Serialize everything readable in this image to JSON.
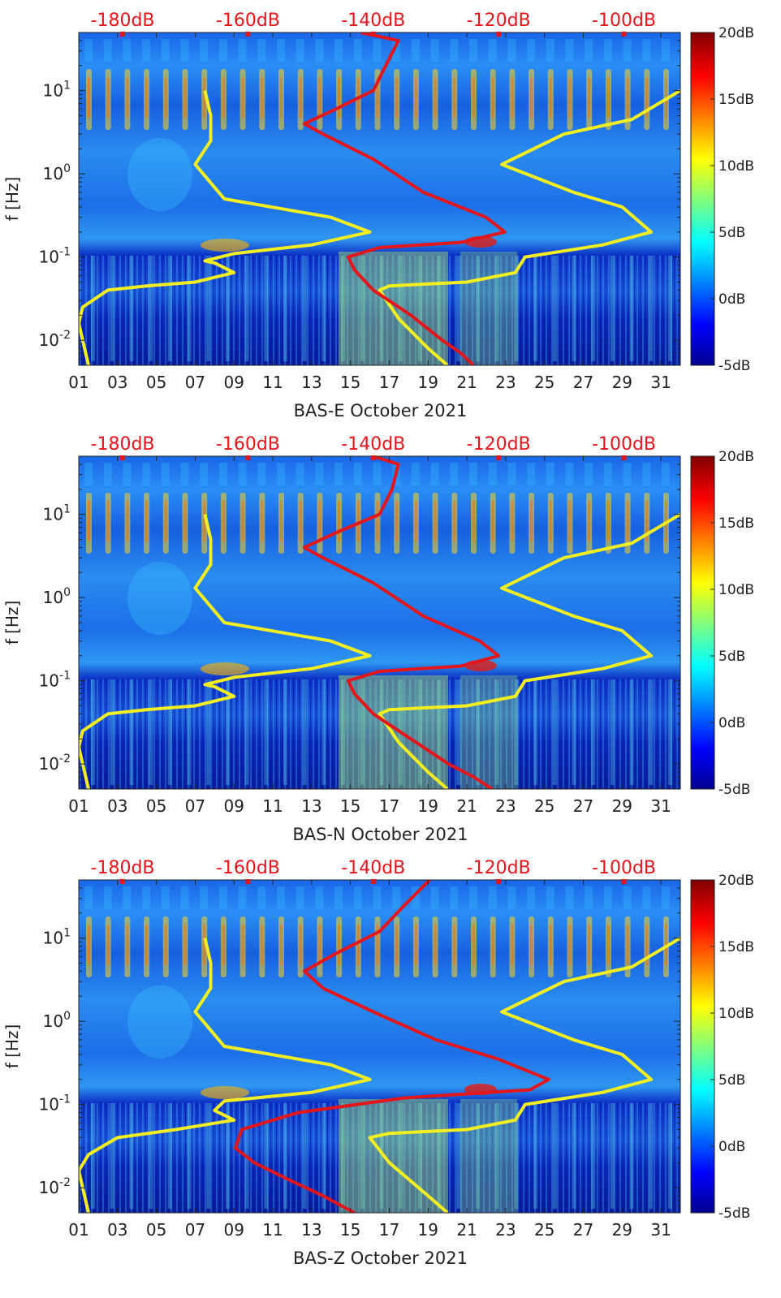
{
  "chart_data": [
    {
      "type": "heatmap",
      "title": "",
      "xlabel": "BAS-E October 2021",
      "ylabel": "f [Hz]",
      "x_tick_labels": [
        "01",
        "03",
        "05",
        "07",
        "09",
        "11",
        "13",
        "15",
        "17",
        "19",
        "21",
        "23",
        "25",
        "27",
        "29",
        "31"
      ],
      "x_tick_values": [
        1,
        3,
        5,
        7,
        9,
        11,
        13,
        15,
        17,
        19,
        21,
        23,
        25,
        27,
        29,
        31
      ],
      "xlim": [
        1,
        32
      ],
      "y_scale": "log",
      "ylim": [
        0.005,
        50
      ],
      "y_ticks": [
        {
          "base": "10",
          "exp": "1",
          "value": 10
        },
        {
          "base": "10",
          "exp": "0",
          "value": 1
        },
        {
          "base": "10",
          "exp": "-1",
          "value": 0.1
        },
        {
          "base": "10",
          "exp": "-2",
          "value": 0.01
        }
      ],
      "top_axis_labels": [
        "-180dB",
        "-160dB",
        "-140dB",
        "-120dB",
        "-100dB"
      ],
      "top_axis_values": [
        -180,
        -160,
        -140,
        -120,
        -100
      ],
      "top_axis_range": [
        -187,
        -91
      ],
      "colorbar": {
        "labels": [
          "20dB",
          "15dB",
          "10dB",
          "5dB",
          "0dB",
          "-5dB"
        ],
        "values": [
          20,
          15,
          10,
          5,
          0,
          -5
        ],
        "range": [
          -5,
          20
        ]
      },
      "series": [
        {
          "name": "yellow-low",
          "color": "#f2ee22",
          "axis": "date",
          "points": [
            [
              1.5,
              0.005
            ],
            [
              1.0,
              0.016
            ],
            [
              1.2,
              0.025
            ],
            [
              2.5,
              0.04
            ],
            [
              4.5,
              0.045
            ],
            [
              7.0,
              0.05
            ],
            [
              9.0,
              0.065
            ],
            [
              8.0,
              0.085
            ],
            [
              7.5,
              0.09
            ],
            [
              9.0,
              0.11
            ],
            [
              13.0,
              0.14
            ],
            [
              16.0,
              0.2
            ],
            [
              14.0,
              0.3
            ],
            [
              8.5,
              0.5
            ],
            [
              7.0,
              1.3
            ],
            [
              7.8,
              2.5
            ],
            [
              7.8,
              5.0
            ],
            [
              7.5,
              10.0
            ]
          ]
        },
        {
          "name": "yellow-high",
          "color": "#f2ee22",
          "axis": "date",
          "points": [
            [
              20.0,
              0.005
            ],
            [
              19.0,
              0.008
            ],
            [
              17.5,
              0.018
            ],
            [
              16.5,
              0.04
            ],
            [
              17.0,
              0.045
            ],
            [
              21.0,
              0.05
            ],
            [
              23.5,
              0.065
            ],
            [
              24.0,
              0.1
            ],
            [
              28.0,
              0.14
            ],
            [
              30.5,
              0.2
            ],
            [
              29.0,
              0.4
            ],
            [
              26.5,
              0.6
            ],
            [
              22.8,
              1.3
            ],
            [
              26.0,
              3.0
            ],
            [
              29.5,
              4.5
            ],
            [
              32.0,
              10.0
            ]
          ]
        },
        {
          "name": "red-spectrum",
          "color": "#e3161b",
          "axis": "dB",
          "points": [
            [
              -124,
              0.005
            ],
            [
              -126,
              0.007
            ],
            [
              -129,
              0.01
            ],
            [
              -134,
              0.02
            ],
            [
              -140,
              0.04
            ],
            [
              -143,
              0.07
            ],
            [
              -144,
              0.1
            ],
            [
              -139,
              0.13
            ],
            [
              -126,
              0.15
            ],
            [
              -119,
              0.2
            ],
            [
              -122,
              0.3
            ],
            [
              -132,
              0.6
            ],
            [
              -140,
              1.5
            ],
            [
              -148,
              3.0
            ],
            [
              -151,
              4.0
            ],
            [
              -146,
              6.0
            ],
            [
              -140,
              10.0
            ],
            [
              -138,
              20.0
            ],
            [
              -136,
              40.0
            ],
            [
              -142,
              50.0
            ]
          ]
        }
      ]
    },
    {
      "type": "heatmap",
      "title": "",
      "xlabel": "BAS-N October 2021",
      "ylabel": "f [Hz]",
      "x_tick_labels": [
        "01",
        "03",
        "05",
        "07",
        "09",
        "11",
        "13",
        "15",
        "17",
        "19",
        "21",
        "23",
        "25",
        "27",
        "29",
        "31"
      ],
      "x_tick_values": [
        1,
        3,
        5,
        7,
        9,
        11,
        13,
        15,
        17,
        19,
        21,
        23,
        25,
        27,
        29,
        31
      ],
      "xlim": [
        1,
        32
      ],
      "y_scale": "log",
      "ylim": [
        0.005,
        50
      ],
      "y_ticks": [
        {
          "base": "10",
          "exp": "1",
          "value": 10
        },
        {
          "base": "10",
          "exp": "0",
          "value": 1
        },
        {
          "base": "10",
          "exp": "-1",
          "value": 0.1
        },
        {
          "base": "10",
          "exp": "-2",
          "value": 0.01
        }
      ],
      "top_axis_labels": [
        "-180dB",
        "-160dB",
        "-140dB",
        "-120dB",
        "-100dB"
      ],
      "top_axis_values": [
        -180,
        -160,
        -140,
        -120,
        -100
      ],
      "top_axis_range": [
        -187,
        -91
      ],
      "colorbar": {
        "labels": [
          "20dB",
          "15dB",
          "10dB",
          "5dB",
          "0dB",
          "-5dB"
        ],
        "values": [
          20,
          15,
          10,
          5,
          0,
          -5
        ],
        "range": [
          -5,
          20
        ]
      },
      "series": [
        {
          "name": "yellow-low",
          "color": "#f2ee22",
          "axis": "date",
          "points": [
            [
              1.5,
              0.005
            ],
            [
              1.0,
              0.016
            ],
            [
              1.2,
              0.025
            ],
            [
              2.5,
              0.04
            ],
            [
              4.5,
              0.045
            ],
            [
              7.0,
              0.05
            ],
            [
              9.0,
              0.065
            ],
            [
              8.0,
              0.085
            ],
            [
              7.5,
              0.09
            ],
            [
              9.0,
              0.11
            ],
            [
              13.0,
              0.14
            ],
            [
              16.0,
              0.2
            ],
            [
              14.0,
              0.3
            ],
            [
              8.5,
              0.5
            ],
            [
              7.0,
              1.3
            ],
            [
              7.8,
              2.5
            ],
            [
              7.8,
              5.0
            ],
            [
              7.5,
              10.0
            ]
          ]
        },
        {
          "name": "yellow-high",
          "color": "#f2ee22",
          "axis": "date",
          "points": [
            [
              20.0,
              0.005
            ],
            [
              19.0,
              0.008
            ],
            [
              17.5,
              0.018
            ],
            [
              16.5,
              0.04
            ],
            [
              17.0,
              0.045
            ],
            [
              21.0,
              0.05
            ],
            [
              23.5,
              0.065
            ],
            [
              24.0,
              0.1
            ],
            [
              28.0,
              0.14
            ],
            [
              30.5,
              0.2
            ],
            [
              29.0,
              0.4
            ],
            [
              26.5,
              0.6
            ],
            [
              22.8,
              1.3
            ],
            [
              26.0,
              3.0
            ],
            [
              29.5,
              4.5
            ],
            [
              32.0,
              10.0
            ]
          ]
        },
        {
          "name": "red-spectrum",
          "color": "#e3161b",
          "axis": "dB",
          "points": [
            [
              -121,
              0.005
            ],
            [
              -124,
              0.007
            ],
            [
              -128,
              0.01
            ],
            [
              -134,
              0.02
            ],
            [
              -140,
              0.04
            ],
            [
              -143,
              0.07
            ],
            [
              -144,
              0.1
            ],
            [
              -139,
              0.13
            ],
            [
              -126,
              0.15
            ],
            [
              -120,
              0.2
            ],
            [
              -123,
              0.3
            ],
            [
              -132,
              0.6
            ],
            [
              -140,
              1.5
            ],
            [
              -148,
              3.0
            ],
            [
              -151,
              4.0
            ],
            [
              -146,
              6.0
            ],
            [
              -139,
              10.0
            ],
            [
              -137,
              20.0
            ],
            [
              -136,
              40.0
            ],
            [
              -140,
              50.0
            ]
          ]
        }
      ]
    },
    {
      "type": "heatmap",
      "title": "",
      "xlabel": "BAS-Z October 2021",
      "ylabel": "f [Hz]",
      "x_tick_labels": [
        "01",
        "03",
        "05",
        "07",
        "09",
        "11",
        "13",
        "15",
        "17",
        "19",
        "21",
        "23",
        "25",
        "27",
        "29",
        "31"
      ],
      "x_tick_values": [
        1,
        3,
        5,
        7,
        9,
        11,
        13,
        15,
        17,
        19,
        21,
        23,
        25,
        27,
        29,
        31
      ],
      "xlim": [
        1,
        32
      ],
      "y_scale": "log",
      "ylim": [
        0.005,
        50
      ],
      "y_ticks": [
        {
          "base": "10",
          "exp": "1",
          "value": 10
        },
        {
          "base": "10",
          "exp": "0",
          "value": 1
        },
        {
          "base": "10",
          "exp": "-1",
          "value": 0.1
        },
        {
          "base": "10",
          "exp": "-2",
          "value": 0.01
        }
      ],
      "top_axis_labels": [
        "-180dB",
        "-160dB",
        "-140dB",
        "-120dB",
        "-100dB"
      ],
      "top_axis_values": [
        -180,
        -160,
        -140,
        -120,
        -100
      ],
      "top_axis_range": [
        -187,
        -91
      ],
      "colorbar": {
        "labels": [
          "20dB",
          "15dB",
          "10dB",
          "5dB",
          "0dB",
          "-5dB"
        ],
        "values": [
          20,
          15,
          10,
          5,
          0,
          -5
        ],
        "range": [
          -5,
          20
        ]
      },
      "series": [
        {
          "name": "yellow-low",
          "color": "#f2ee22",
          "axis": "date",
          "points": [
            [
              1.5,
              0.005
            ],
            [
              1.0,
              0.016
            ],
            [
              1.5,
              0.025
            ],
            [
              3.0,
              0.04
            ],
            [
              6.0,
              0.05
            ],
            [
              9.0,
              0.065
            ],
            [
              8.0,
              0.085
            ],
            [
              8.5,
              0.11
            ],
            [
              13.0,
              0.14
            ],
            [
              16.0,
              0.2
            ],
            [
              14.0,
              0.3
            ],
            [
              8.5,
              0.5
            ],
            [
              7.0,
              1.3
            ],
            [
              7.8,
              2.5
            ],
            [
              7.8,
              5.0
            ],
            [
              7.5,
              10.0
            ]
          ]
        },
        {
          "name": "yellow-high",
          "color": "#f2ee22",
          "axis": "date",
          "points": [
            [
              20.0,
              0.005
            ],
            [
              19.0,
              0.008
            ],
            [
              17.0,
              0.02
            ],
            [
              16.0,
              0.04
            ],
            [
              17.0,
              0.045
            ],
            [
              21.0,
              0.05
            ],
            [
              23.5,
              0.065
            ],
            [
              24.0,
              0.1
            ],
            [
              28.0,
              0.14
            ],
            [
              30.5,
              0.2
            ],
            [
              29.0,
              0.4
            ],
            [
              26.5,
              0.6
            ],
            [
              22.8,
              1.3
            ],
            [
              26.0,
              3.0
            ],
            [
              29.5,
              4.5
            ],
            [
              32.0,
              10.0
            ]
          ]
        },
        {
          "name": "red-spectrum",
          "color": "#e3161b",
          "axis": "dB",
          "points": [
            [
              -143,
              0.005
            ],
            [
              -148,
              0.008
            ],
            [
              -153,
              0.012
            ],
            [
              -159,
              0.02
            ],
            [
              -162,
              0.03
            ],
            [
              -161,
              0.05
            ],
            [
              -152,
              0.08
            ],
            [
              -135,
              0.12
            ],
            [
              -115,
              0.15
            ],
            [
              -112,
              0.2
            ],
            [
              -120,
              0.35
            ],
            [
              -130,
              0.6
            ],
            [
              -139,
              1.2
            ],
            [
              -148,
              2.5
            ],
            [
              -151,
              4.0
            ],
            [
              -146,
              6.5
            ],
            [
              -139,
              12.0
            ],
            [
              -135,
              25.0
            ],
            [
              -131,
              50.0
            ]
          ]
        }
      ]
    }
  ]
}
